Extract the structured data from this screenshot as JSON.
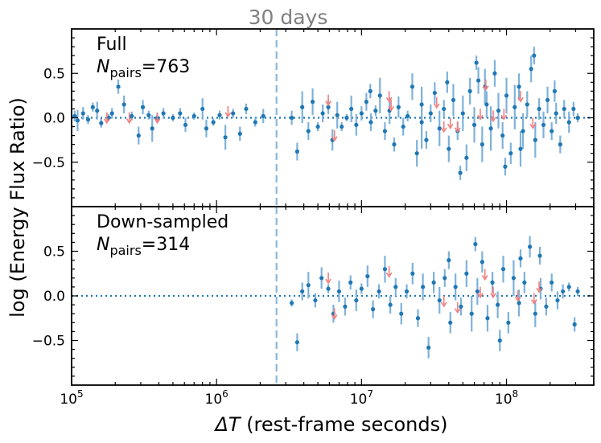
{
  "chart_data": {
    "type": "scatter",
    "xlabel_var": "ΔT",
    "xlabel_rest": " (rest-frame seconds)",
    "ylabel": "log (Energy Flux Ratio)",
    "x_scale": "log",
    "xlim": [
      100000,
      400000000
    ],
    "ylim": [
      -1.0,
      1.0
    ],
    "x_ticks": [
      {
        "value": 100000,
        "base": "10",
        "exp": "5"
      },
      {
        "value": 1000000,
        "base": "10",
        "exp": "6"
      },
      {
        "value": 10000000,
        "base": "10",
        "exp": "7"
      },
      {
        "value": 100000000,
        "base": "10",
        "exp": "8"
      }
    ],
    "y_ticks": [
      {
        "value": 0.5,
        "label": "0.5"
      },
      {
        "value": 0.0,
        "label": "0.0"
      },
      {
        "value": -0.5,
        "label": "−0.5"
      }
    ],
    "reference_line": {
      "value": 2592000,
      "label": "30 days"
    },
    "zero_line": 0.0,
    "colors": {
      "points": "#1f77b4",
      "errorbars": "#7fb2d9",
      "upper_limits": "#f08080",
      "ref_line": "#8ab8dc",
      "zero_line": "#1f77b4"
    },
    "panels": [
      {
        "title": "Full",
        "n_label": "N",
        "n_sub": "pairs",
        "n_value": "=763",
        "points": [
          [
            105000.0,
            0.02,
            0.06
          ],
          [
            110000.0,
            -0.03,
            0.12
          ],
          [
            120000.0,
            0.05,
            0.07
          ],
          [
            130000.0,
            -0.02,
            0.05
          ],
          [
            140000.0,
            0.12,
            0.05
          ],
          [
            150000.0,
            0.08,
            0.1
          ],
          [
            160000.0,
            -0.06,
            0.05
          ],
          [
            180000.0,
            0.0,
            0.04
          ],
          [
            190000.0,
            0.05,
            0.06
          ],
          [
            210000.0,
            0.35,
            0.08
          ],
          [
            230000.0,
            0.15,
            0.1
          ],
          [
            260000.0,
            0.02,
            0.05
          ],
          [
            290000.0,
            -0.2,
            0.1
          ],
          [
            310000.0,
            0.12,
            0.08
          ],
          [
            340000.0,
            0.03,
            0.05
          ],
          [
            360000.0,
            -0.12,
            0.15
          ],
          [
            390000.0,
            0.0,
            0.05
          ],
          [
            430000.0,
            0.05,
            0.06
          ],
          [
            500000.0,
            0.0,
            0.04
          ],
          [
            560000.0,
            0.05,
            0.06
          ],
          [
            610000.0,
            -0.08,
            0.08
          ],
          [
            700000.0,
            0.02,
            0.04
          ],
          [
            800000.0,
            0.1,
            0.12
          ],
          [
            850000.0,
            -0.12,
            0.1
          ],
          [
            950000.0,
            -0.05,
            0.04
          ],
          [
            1050000.0,
            0.03,
            0.05
          ],
          [
            1150000.0,
            -0.22,
            0.14
          ],
          [
            1300000.0,
            0.05,
            0.05
          ],
          [
            1450000.0,
            -0.18,
            0.08
          ],
          [
            1600000.0,
            0.1,
            0.06
          ],
          [
            1850000.0,
            -0.05,
            0.05
          ],
          [
            2100000.0,
            0.02,
            0.08
          ],
          [
            3300000.0,
            0.0,
            0.08
          ],
          [
            3600000.0,
            -0.38,
            0.1
          ],
          [
            3900000.0,
            0.12,
            0.18
          ],
          [
            4300000.0,
            -0.15,
            0.1
          ],
          [
            4600000.0,
            0.18,
            0.15
          ],
          [
            5000000.0,
            -0.1,
            0.05
          ],
          [
            5400000.0,
            0.05,
            0.1
          ],
          [
            5900000.0,
            0.12,
            0.08
          ],
          [
            6300000.0,
            -0.25,
            0.12
          ],
          [
            6800000.0,
            0.03,
            0.15
          ],
          [
            7300000.0,
            -0.1,
            0.05
          ],
          [
            7900000.0,
            0.0,
            0.04
          ],
          [
            8500000.0,
            0.1,
            0.15
          ],
          [
            9200000.0,
            -0.08,
            0.12
          ],
          [
            10000000.0,
            0.05,
            0.08
          ],
          [
            10800000.0,
            0.18,
            0.1
          ],
          [
            11600000.0,
            -0.05,
            0.1
          ],
          [
            12500000.0,
            0.08,
            0.06
          ],
          [
            13400000.0,
            0.25,
            0.2
          ],
          [
            14500000.0,
            -0.15,
            0.1
          ],
          [
            15600000.0,
            0.08,
            0.15
          ],
          [
            16800000.0,
            -0.3,
            0.08
          ],
          [
            18000000.0,
            0.12,
            0.12
          ],
          [
            19400000.0,
            -0.1,
            0.1
          ],
          [
            20800000.0,
            0.02,
            0.06
          ],
          [
            22400000.0,
            0.35,
            0.15
          ],
          [
            24100000.0,
            -0.4,
            0.15
          ],
          [
            26000000.0,
            0.15,
            0.2
          ],
          [
            28000000.0,
            -0.25,
            0.1
          ],
          [
            30000000.0,
            0.05,
            0.1
          ],
          [
            32000000.0,
            0.28,
            0.12
          ],
          [
            34500000.0,
            -0.12,
            0.2
          ],
          [
            37000000.0,
            0.1,
            0.1
          ],
          [
            40000000.0,
            -0.35,
            0.15
          ],
          [
            43000000.0,
            0.2,
            0.18
          ],
          [
            46000000.0,
            -0.15,
            0.1
          ],
          [
            50000000.0,
            0.05,
            0.2
          ],
          [
            53000000.0,
            -0.45,
            0.15
          ],
          [
            56000000.0,
            0.3,
            0.15
          ],
          [
            60000000.0,
            -0.08,
            0.2
          ],
          [
            64000000.0,
            0.42,
            0.15
          ],
          [
            68000000.0,
            -0.3,
            0.2
          ],
          [
            73000000.0,
            0.15,
            0.15
          ],
          [
            78000000.0,
            -0.12,
            0.25
          ],
          [
            83000000.0,
            0.5,
            0.15
          ],
          [
            88000000.0,
            0.08,
            0.2
          ],
          [
            94000000.0,
            -0.2,
            0.15
          ],
          [
            100000000.0,
            0.25,
            0.2
          ],
          [
            107000000.0,
            -0.4,
            0.12
          ],
          [
            114000000.0,
            0.12,
            0.25
          ],
          [
            122000000.0,
            0.35,
            0.15
          ],
          [
            130000000.0,
            -0.15,
            0.2
          ],
          [
            139000000.0,
            0.15,
            0.15
          ],
          [
            148000000.0,
            0.55,
            0.15
          ],
          [
            158000000.0,
            -0.25,
            0.2
          ],
          [
            168000000.0,
            0.1,
            0.12
          ],
          [
            180000000.0,
            -0.08,
            0.15
          ],
          [
            192000000.0,
            0.2,
            0.15
          ],
          [
            205000000.0,
            -0.15,
            0.1
          ],
          [
            220000000.0,
            0.05,
            0.12
          ],
          [
            235000000.0,
            -0.3,
            0.1
          ],
          [
            250000000.0,
            0.1,
            0.1
          ],
          [
            270000000.0,
            -0.05,
            0.12
          ],
          [
            290000000.0,
            0.1,
            0.08
          ],
          [
            310000000.0,
            0.0,
            0.05
          ],
          [
            11500000.0,
            0.3,
            0.08
          ],
          [
            26000000.0,
            -0.05,
            0.3
          ],
          [
            39000000.0,
            0.4,
            0.12
          ],
          [
            62000000.0,
            0.62,
            0.08
          ],
          [
            98000000.0,
            -0.55,
            0.1
          ],
          [
            155000000.0,
            0.7,
            0.1
          ],
          [
            48000000.0,
            -0.62,
            0.08
          ],
          [
            71000000.0,
            0.35,
            0.2
          ],
          [
            125000000.0,
            -0.35,
            0.2
          ],
          [
            215000000.0,
            0.3,
            0.12
          ]
        ],
        "upper_limits": [
          [
            175000.0,
            -0.02
          ],
          [
            250000.0,
            -0.02
          ],
          [
            390000.0,
            -0.02
          ],
          [
            1200000.0,
            0.05
          ],
          [
            5900000.0,
            0.18
          ],
          [
            6500000.0,
            -0.22
          ],
          [
            15500000.0,
            0.22
          ],
          [
            16000000.0,
            0.12
          ],
          [
            33000000.0,
            0.15
          ],
          [
            37000000.0,
            -0.12
          ],
          [
            41000000.0,
            -0.08
          ],
          [
            46000000.0,
            -0.12
          ],
          [
            66000000.0,
            0.02
          ],
          [
            72000000.0,
            0.35
          ],
          [
            81000000.0,
            0.0
          ],
          [
            96000000.0,
            0.02
          ],
          [
            125000000.0,
            0.22
          ],
          [
            152000000.0,
            -0.08
          ]
        ]
      },
      {
        "title": "Down-sampled",
        "n_label": "N",
        "n_sub": "pairs",
        "n_value": "=314",
        "points": [
          [
            3300000.0,
            -0.08,
            0.04
          ],
          [
            3600000.0,
            -0.52,
            0.1
          ],
          [
            3900000.0,
            0.05,
            0.1
          ],
          [
            4300000.0,
            0.12,
            0.15
          ],
          [
            4800000.0,
            -0.05,
            0.08
          ],
          [
            5300000.0,
            0.2,
            0.12
          ],
          [
            5900000.0,
            0.08,
            0.05
          ],
          [
            6400000.0,
            -0.2,
            0.1
          ],
          [
            7000000.0,
            0.05,
            0.12
          ],
          [
            7700000.0,
            -0.12,
            0.1
          ],
          [
            8400000.0,
            0.15,
            0.08
          ],
          [
            9200000.0,
            -0.05,
            0.12
          ],
          [
            10000000.0,
            0.08,
            0.06
          ],
          [
            11000000.0,
            0.22,
            0.12
          ],
          [
            12000000.0,
            -0.15,
            0.1
          ],
          [
            13200000.0,
            0.05,
            0.08
          ],
          [
            14500000.0,
            0.3,
            0.15
          ],
          [
            15800000.0,
            -0.1,
            0.1
          ],
          [
            17200000.0,
            0.1,
            0.1
          ],
          [
            18800000.0,
            -0.2,
            0.12
          ],
          [
            20500000.0,
            0.05,
            0.08
          ],
          [
            22500000.0,
            0.25,
            0.12
          ],
          [
            24500000.0,
            -0.25,
            0.1
          ],
          [
            26500000.0,
            0.1,
            0.15
          ],
          [
            29000000.0,
            -0.58,
            0.12
          ],
          [
            31500000.0,
            0.15,
            0.12
          ],
          [
            34500000.0,
            -0.05,
            0.15
          ],
          [
            37500000.0,
            0.2,
            0.1
          ],
          [
            41000000.0,
            -0.3,
            0.12
          ],
          [
            44500000.0,
            0.1,
            0.15
          ],
          [
            48500000.0,
            -0.12,
            0.1
          ],
          [
            53000000.0,
            0.25,
            0.15
          ],
          [
            57500000.0,
            -0.2,
            0.2
          ],
          [
            63000000.0,
            0.05,
            0.15
          ],
          [
            68000000.0,
            0.38,
            0.12
          ],
          [
            74000000.0,
            -0.25,
            0.15
          ],
          [
            80000000.0,
            0.15,
            0.12
          ],
          [
            87000000.0,
            -0.1,
            0.15
          ],
          [
            95000000.0,
            0.3,
            0.15
          ],
          [
            103000000.0,
            -0.3,
            0.12
          ],
          [
            112000000.0,
            0.2,
            0.2
          ],
          [
            122000000.0,
            -0.08,
            0.15
          ],
          [
            133000000.0,
            0.15,
            0.12
          ],
          [
            145000000.0,
            0.55,
            0.12
          ],
          [
            158000000.0,
            -0.2,
            0.15
          ],
          [
            172000000.0,
            0.08,
            0.12
          ],
          [
            188000000.0,
            -0.12,
            0.1
          ],
          [
            205000000.0,
            0.15,
            0.1
          ],
          [
            225000000.0,
            -0.05,
            0.1
          ],
          [
            245000000.0,
            0.05,
            0.08
          ],
          [
            270000000.0,
            0.1,
            0.05
          ],
          [
            295000000.0,
            -0.32,
            0.08
          ],
          [
            310000000.0,
            0.05,
            0.05
          ],
          [
            61000000.0,
            0.58,
            0.08
          ],
          [
            125000000.0,
            0.42,
            0.1
          ],
          [
            90000000.0,
            -0.5,
            0.12
          ],
          [
            170000000.0,
            0.45,
            0.1
          ],
          [
            40000000.0,
            0.4,
            0.1
          ]
        ],
        "upper_limits": [
          [
            5900000.0,
            0.18
          ],
          [
            6500000.0,
            -0.22
          ],
          [
            15500000.0,
            0.25
          ],
          [
            37000000.0,
            -0.08
          ],
          [
            46000000.0,
            -0.15
          ],
          [
            66000000.0,
            0.02
          ],
          [
            71000000.0,
            0.22
          ],
          [
            81000000.0,
            0.02
          ],
          [
            120000000.0,
            -0.02
          ],
          [
            155000000.0,
            -0.05
          ],
          [
            168000000.0,
            0.08
          ]
        ]
      }
    ]
  }
}
